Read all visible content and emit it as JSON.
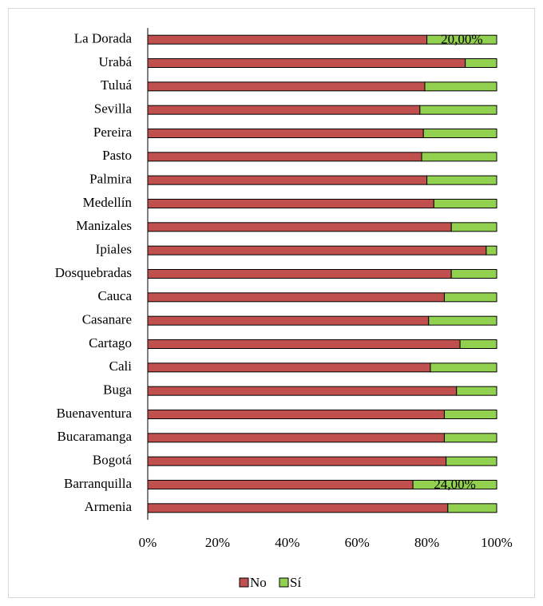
{
  "chart_data": {
    "type": "stacked_hbar",
    "categories": [
      "La Dorada",
      "Urabá",
      "Tuluá",
      "Sevilla",
      "Pereira",
      "Pasto",
      "Palmira",
      "Medellín",
      "Manizales",
      "Ipiales",
      "Dosquebradas",
      "Cauca",
      "Casanare",
      "Cartago",
      "Cali",
      "Buga",
      "Buenaventura",
      "Bucaramanga",
      "Bogotá",
      "Barranquilla",
      "Armenia"
    ],
    "series": [
      {
        "name": "No",
        "color": "#c0504d",
        "values": [
          80,
          91,
          79.4,
          78,
          79,
          78.5,
          80,
          82,
          87,
          97,
          87,
          85,
          80.5,
          89.5,
          81,
          88.5,
          85,
          85,
          85.5,
          76,
          86
        ]
      },
      {
        "name": "Sí",
        "color": "#92d050",
        "values": [
          20,
          9,
          20.6,
          22,
          21,
          21.5,
          20,
          18,
          13,
          3,
          13,
          15,
          19.5,
          10.5,
          19,
          11.5,
          15,
          15,
          14.5,
          24,
          14
        ],
        "value_labels": [
          "20,00%",
          null,
          null,
          null,
          null,
          null,
          null,
          null,
          null,
          null,
          null,
          null,
          null,
          null,
          null,
          null,
          null,
          null,
          null,
          "24,00%",
          null
        ]
      }
    ],
    "xlim": [
      0,
      100
    ],
    "xticks": [
      {
        "value": 0,
        "label": "0%"
      },
      {
        "value": 20,
        "label": "20%"
      },
      {
        "value": 40,
        "label": "40%"
      },
      {
        "value": 60,
        "label": "60%"
      },
      {
        "value": 80,
        "label": "80%"
      },
      {
        "value": 100,
        "label": "100%"
      }
    ],
    "legend": "bottom"
  }
}
